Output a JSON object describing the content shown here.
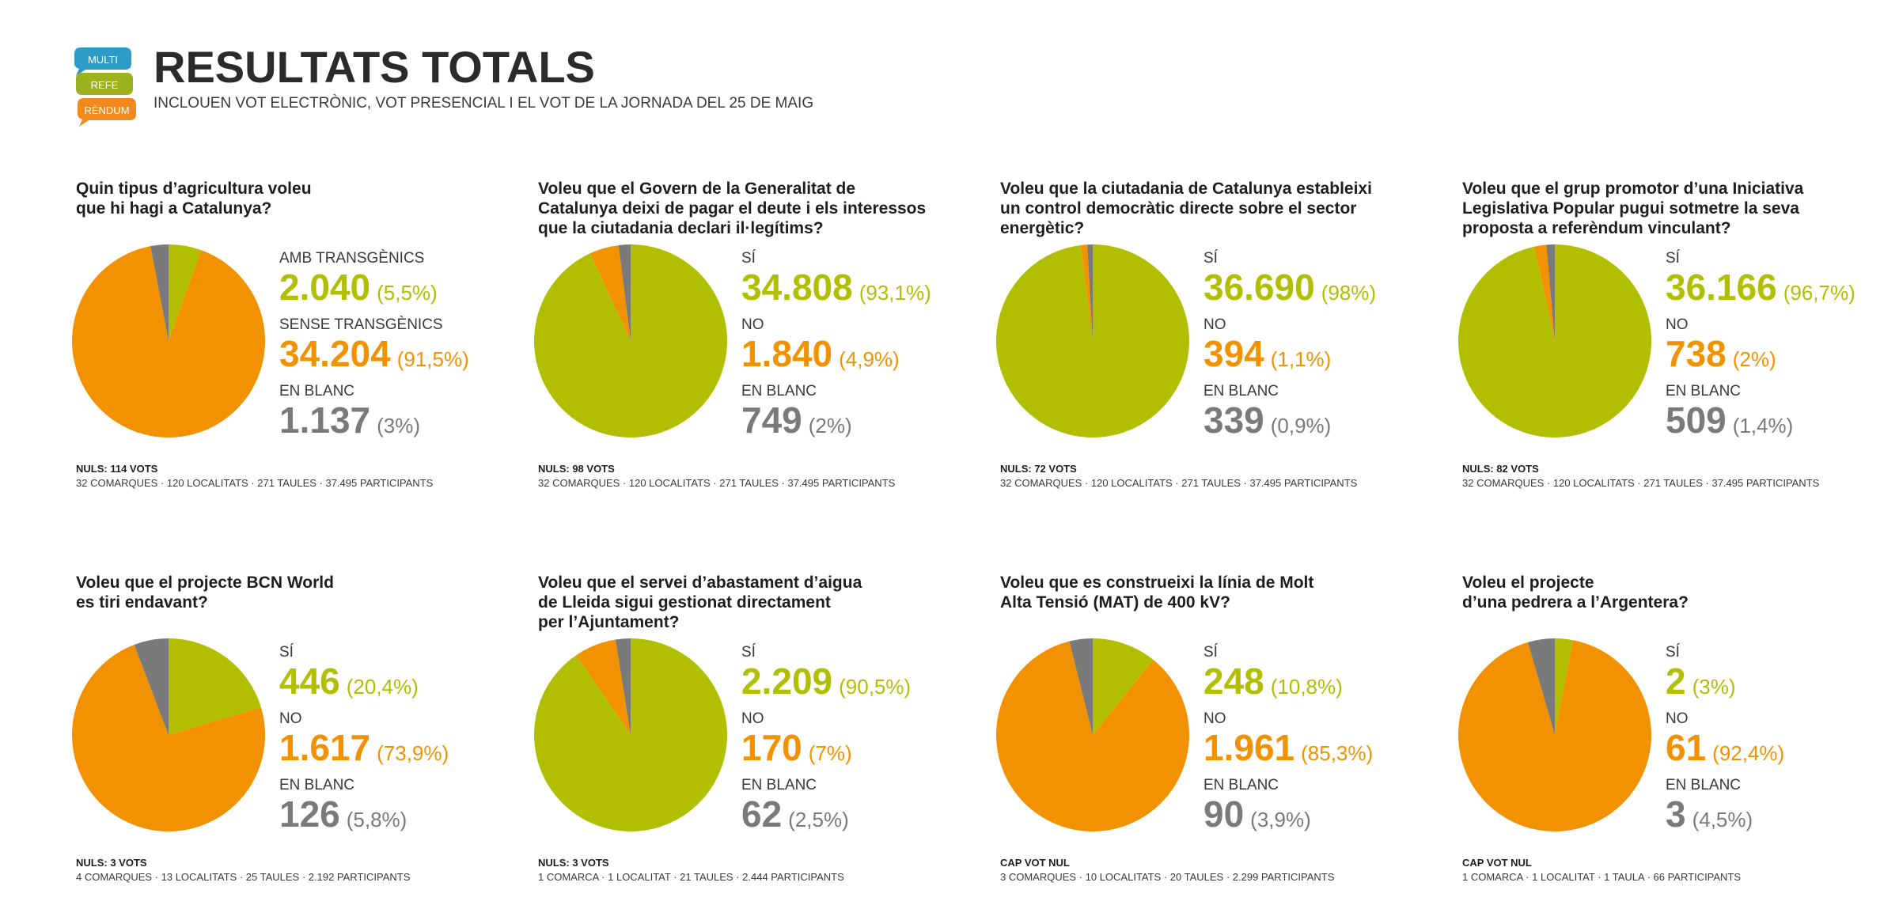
{
  "header": {
    "logo_words": [
      "MULTI",
      "REFE",
      "RÈNDUM"
    ],
    "title": "RESULTATS TOTALS",
    "subtitle": "INCLOUEN VOT ELECTRÒNIC, VOT PRESENCIAL I EL VOT DE LA JORNADA DEL 25 DE MAIG"
  },
  "colors": {
    "green": "#b1bf00",
    "orange": "#f39200",
    "gray": "#7a7a7a"
  },
  "chart_data": [
    {
      "type": "pie",
      "title": [
        "Quin tipus d’agricultura voleu",
        "que hi hagi a Catalunya?"
      ],
      "slices": [
        {
          "label": "AMB TRANSGÈNICS",
          "count": "2.040",
          "pct_text": "(5,5%)",
          "value": 5.5,
          "color": "green"
        },
        {
          "label": "SENSE TRANSGÈNICS",
          "count": "34.204",
          "pct_text": "(91,5%)",
          "value": 91.5,
          "color": "orange"
        },
        {
          "label": "EN BLANC",
          "count": "1.137",
          "pct_text": "(3%)",
          "value": 3,
          "color": "gray"
        }
      ],
      "nuls": "NULS: 114 VOTS",
      "stats": "32 COMARQUES · 120 LOCALITATS · 271 TAULES · 37.495 PARTICIPANTS"
    },
    {
      "type": "pie",
      "title": [
        "Voleu que el Govern de la Generalitat de",
        "Catalunya deixi de pagar el deute i els interessos",
        "que la ciutadania declari il·legítims?"
      ],
      "slices": [
        {
          "label": "SÍ",
          "count": "34.808",
          "pct_text": "(93,1%)",
          "value": 93.1,
          "color": "green"
        },
        {
          "label": "NO",
          "count": "1.840",
          "pct_text": "(4,9%)",
          "value": 4.9,
          "color": "orange"
        },
        {
          "label": "EN BLANC",
          "count": "749",
          "pct_text": "(2%)",
          "value": 2,
          "color": "gray"
        }
      ],
      "nuls": "NULS: 98 VOTS",
      "stats": "32 COMARQUES · 120 LOCALITATS · 271 TAULES · 37.495 PARTICIPANTS"
    },
    {
      "type": "pie",
      "title": [
        "Voleu que la ciutadania de Catalunya estableixi",
        "un control democràtic directe sobre el sector",
        "energètic?"
      ],
      "slices": [
        {
          "label": "SÍ",
          "count": "36.690",
          "pct_text": "(98%)",
          "value": 98,
          "color": "green"
        },
        {
          "label": "NO",
          "count": "394",
          "pct_text": "(1,1%)",
          "value": 1.1,
          "color": "orange"
        },
        {
          "label": "EN BLANC",
          "count": "339",
          "pct_text": "(0,9%)",
          "value": 0.9,
          "color": "gray"
        }
      ],
      "nuls": "NULS: 72 VOTS",
      "stats": "32 COMARQUES · 120 LOCALITATS · 271 TAULES · 37.495 PARTICIPANTS"
    },
    {
      "type": "pie",
      "title": [
        "Voleu que el grup promotor d’una Iniciativa",
        "Legislativa Popular pugui sotmetre la seva",
        "proposta a referèndum vinculant?"
      ],
      "slices": [
        {
          "label": "SÍ",
          "count": "36.166",
          "pct_text": "(96,7%)",
          "value": 96.7,
          "color": "green"
        },
        {
          "label": "NO",
          "count": "738",
          "pct_text": "(2%)",
          "value": 2,
          "color": "orange"
        },
        {
          "label": "EN BLANC",
          "count": "509",
          "pct_text": "(1,4%)",
          "value": 1.4,
          "color": "gray"
        }
      ],
      "nuls": "NULS: 82 VOTS",
      "stats": "32 COMARQUES · 120 LOCALITATS · 271 TAULES · 37.495 PARTICIPANTS"
    },
    {
      "type": "pie",
      "title": [
        "Voleu que el projecte BCN World",
        "es tiri endavant?"
      ],
      "slices": [
        {
          "label": "SÍ",
          "count": "446",
          "pct_text": "(20,4%)",
          "value": 20.4,
          "color": "green"
        },
        {
          "label": "NO",
          "count": "1.617",
          "pct_text": "(73,9%)",
          "value": 73.9,
          "color": "orange"
        },
        {
          "label": "EN BLANC",
          "count": "126",
          "pct_text": "(5,8%)",
          "value": 5.8,
          "color": "gray"
        }
      ],
      "nuls": "NULS: 3 VOTS",
      "stats": "4 COMARQUES · 13 LOCALITATS · 25 TAULES · 2.192 PARTICIPANTS"
    },
    {
      "type": "pie",
      "title": [
        "Voleu que el servei d’abastament d’aigua",
        "de Lleida sigui gestionat directament",
        "per l’Ajuntament?"
      ],
      "slices": [
        {
          "label": "SÍ",
          "count": "2.209",
          "pct_text": "(90,5%)",
          "value": 90.5,
          "color": "green"
        },
        {
          "label": "NO",
          "count": "170",
          "pct_text": "(7%)",
          "value": 7,
          "color": "orange"
        },
        {
          "label": "EN BLANC",
          "count": "62",
          "pct_text": "(2,5%)",
          "value": 2.5,
          "color": "gray"
        }
      ],
      "nuls": "NULS: 3 VOTS",
      "stats": "1 COMARCA · 1 LOCALITAT · 21 TAULES · 2.444 PARTICIPANTS"
    },
    {
      "type": "pie",
      "title": [
        "Voleu que es construeixi la línia de Molt",
        "Alta Tensió (MAT) de 400 kV?"
      ],
      "slices": [
        {
          "label": "SÍ",
          "count": "248",
          "pct_text": "(10,8%)",
          "value": 10.8,
          "color": "green"
        },
        {
          "label": "NO",
          "count": "1.961",
          "pct_text": "(85,3%)",
          "value": 85.3,
          "color": "orange"
        },
        {
          "label": "EN BLANC",
          "count": "90",
          "pct_text": "(3,9%)",
          "value": 3.9,
          "color": "gray"
        }
      ],
      "nuls": "CAP VOT NUL",
      "stats": "3 COMARQUES · 10 LOCALITATS · 20 TAULES · 2.299 PARTICIPANTS"
    },
    {
      "type": "pie",
      "title": [
        "Voleu el projecte",
        "d’una pedrera a l’Argentera?"
      ],
      "slices": [
        {
          "label": "SÍ",
          "count": "2",
          "pct_text": "(3%)",
          "value": 3,
          "color": "green"
        },
        {
          "label": "NO",
          "count": "61",
          "pct_text": "(92,4%)",
          "value": 92.4,
          "color": "orange"
        },
        {
          "label": "EN BLANC",
          "count": "3",
          "pct_text": "(4,5%)",
          "value": 4.5,
          "color": "gray"
        }
      ],
      "nuls": "CAP VOT NUL",
      "stats": "1 COMARCA · 1 LOCALITAT · 1 TAULA · 66 PARTICIPANTS"
    }
  ]
}
